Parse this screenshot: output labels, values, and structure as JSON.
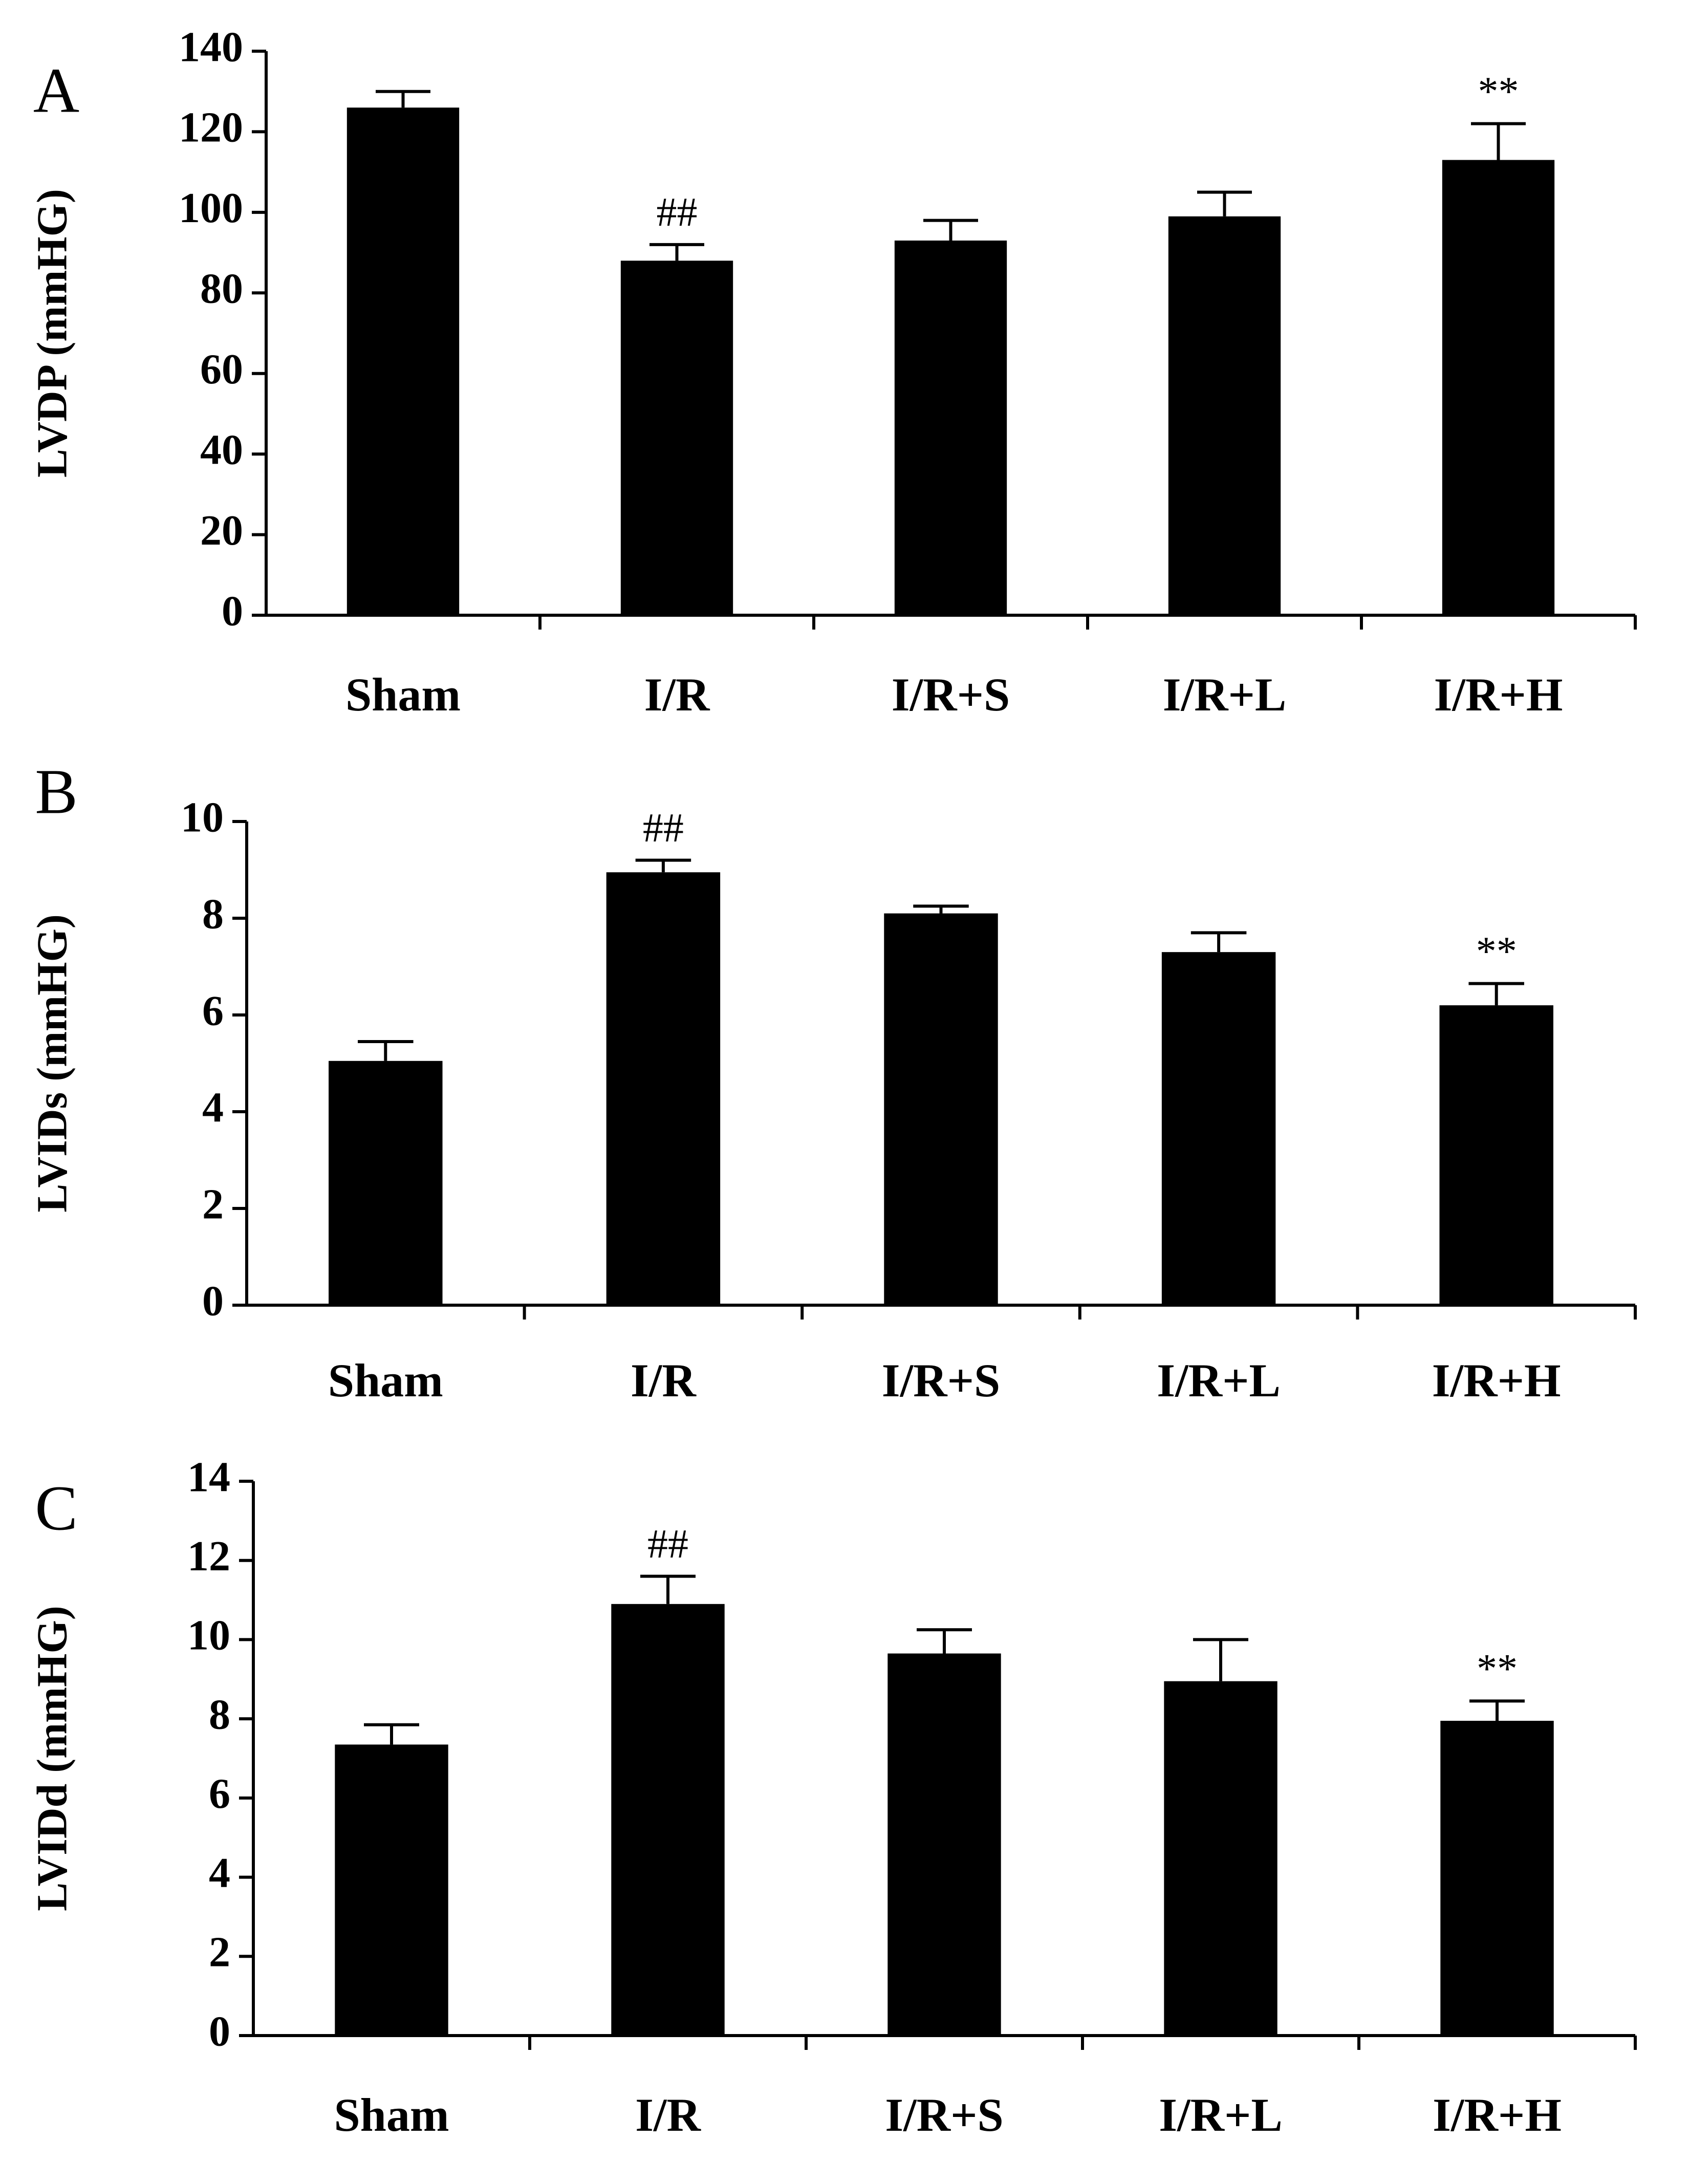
{
  "chart_data": [
    {
      "type": "bar",
      "panel_label": "A",
      "y_label": "LVDP (mmHG)",
      "categories": [
        "Sham",
        "I/R",
        "I/R+S",
        "I/R+L",
        "I/R+H"
      ],
      "values": [
        126,
        88,
        93,
        99,
        113
      ],
      "errors": [
        4,
        4,
        5,
        6,
        9
      ],
      "annotations": [
        null,
        "##",
        null,
        null,
        "**"
      ],
      "color": "#000000",
      "ylim": [
        0,
        140
      ],
      "yticks": [
        0,
        20,
        40,
        60,
        80,
        100,
        120,
        140
      ]
    },
    {
      "type": "bar",
      "panel_label": "B",
      "y_label": "LVIDs (mmHG)",
      "categories": [
        "Sham",
        "I/R",
        "I/R+S",
        "I/R+L",
        "I/R+H"
      ],
      "values": [
        5.05,
        8.95,
        8.1,
        7.3,
        6.2
      ],
      "errors": [
        0.4,
        0.25,
        0.15,
        0.4,
        0.45
      ],
      "annotations": [
        null,
        "##",
        null,
        null,
        "**"
      ],
      "color": "#000000",
      "ylim": [
        0,
        10
      ],
      "yticks": [
        0,
        2,
        4,
        6,
        8,
        10
      ]
    },
    {
      "type": "bar",
      "panel_label": "C",
      "y_label": "LVIDd (mmHG)",
      "categories": [
        "Sham",
        "I/R",
        "I/R+S",
        "I/R+L",
        "I/R+H"
      ],
      "values": [
        7.35,
        10.9,
        9.65,
        8.95,
        7.95
      ],
      "errors": [
        0.5,
        0.7,
        0.6,
        1.05,
        0.5
      ],
      "annotations": [
        null,
        "##",
        null,
        null,
        "**"
      ],
      "color": "#000000",
      "ylim": [
        0,
        14
      ],
      "yticks": [
        0,
        2,
        4,
        6,
        8,
        10,
        12,
        14
      ]
    }
  ]
}
